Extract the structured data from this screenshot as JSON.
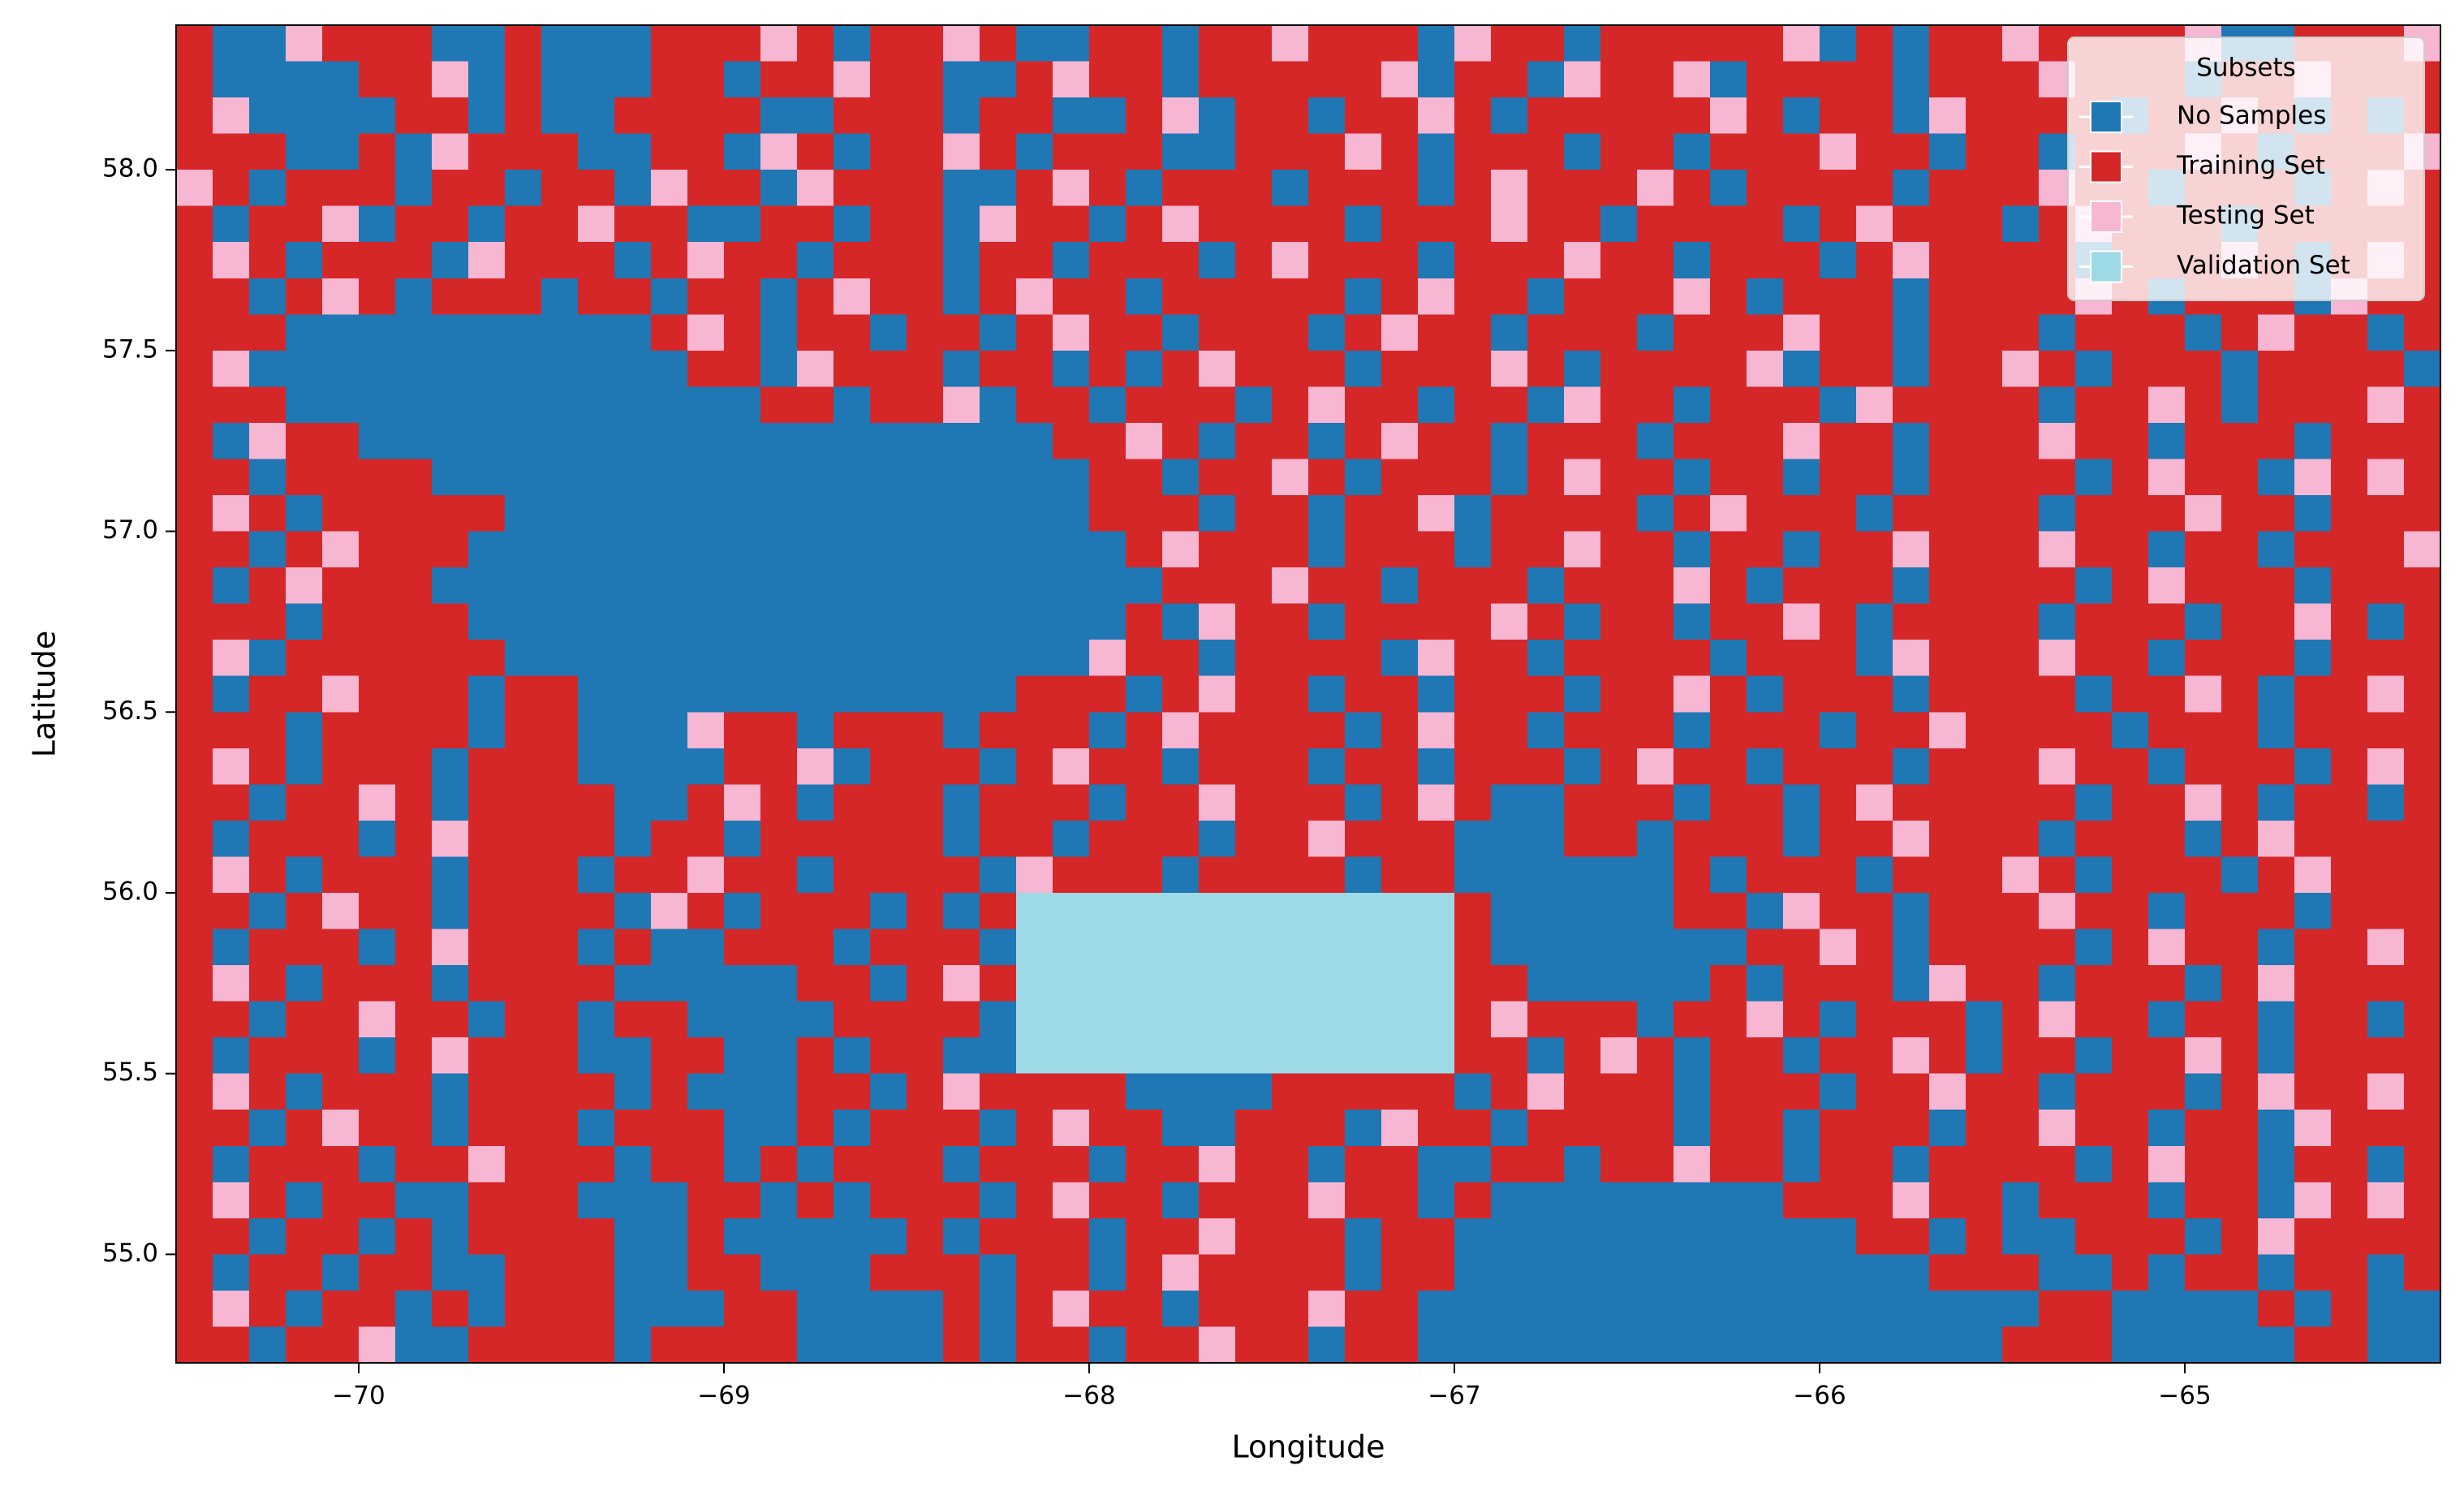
{
  "chart_data": {
    "type": "raster",
    "xlabel": "Longitude",
    "ylabel": "Latitude",
    "legend_title": "Subsets",
    "legend": "upper right",
    "xlim": [
      -70.5,
      -64.3
    ],
    "ylim": [
      54.7,
      58.4
    ],
    "xticks": [
      {
        "value": -70,
        "label": "−70"
      },
      {
        "value": -69,
        "label": "−69"
      },
      {
        "value": -68,
        "label": "−68"
      },
      {
        "value": -67,
        "label": "−67"
      },
      {
        "value": -66,
        "label": "−66"
      },
      {
        "value": -65,
        "label": "−65"
      }
    ],
    "yticks": [
      {
        "value": 55,
        "label": "55.0"
      },
      55.5,
      {
        "value": 56,
        "label": "56.0"
      },
      56.5,
      {
        "value": 57,
        "label": "57.0"
      },
      57.5,
      {
        "value": 58,
        "label": "58.0"
      }
    ],
    "series": [
      {
        "name": "No Samples",
        "color": "#1f77b4"
      },
      {
        "name": "Training Set",
        "color": "#d62728"
      },
      {
        "name": "Testing Set",
        "color": "#f7b6d2"
      },
      {
        "name": "Validation Set",
        "color": "#9edae5"
      }
    ],
    "grid_rows": [
      "10021110010001112101121001101121110211011111201011211112001112",
      "10000112010001101121100121101111120110211201111011121110112111",
      "12000011010011110011101100120110112101111121011021111011210101",
      "11100102111001102101121011100111210111011011121101101112101112",
      "21011101101102110211100121011101110121112101111011121101110121",
      "10112011011211001101102110121111011121101111012111012111011111",
      "12101110211101211011101101110121110111211011101211110111210121",
      "11012101110110110121101211011111012110111210111011112101110211",
      "11100000000001210110110121101110121101110111211011101110121101",
      "12000000000000110211101101012111011121011112011011210111011110",
      "11100000000000001101120110111012110110211011102111101121011121",
      "10211000000000000000000011210110121101110111211011121101110111",
      "11011110000000000000000001101121011101211011011011110121102121",
      "12101111100000000000000001110110112011110121110111101112110111",
      "11012111000000000000000000121110111011211011011211121101101112",
      "10121110000000000000000000011121101110111210111011110121110111",
      "11101111000000000000000000102110111121011011210111101110112101",
      "12011111100000000000000002110111102110111101110211121101110111",
      "10112111011000000000000111012110110111011210111011110112101121",
      "11101111011000211011101110121111012110111011101121111011101111",
      "12101110111000011201110121101110110111012110111011121101110121",
      "11011210111100121011101110112111012100111011012111110112101101",
      "10111012111101101111101101110112111000110111011211101110121111",
      "12101110111011211011110211101111011000000101110111210111012111",
      "11012110111102101110101333333333333100000110211011121101110111",
      "10111012111010011101110333333333333100000001121011110121101121",
      "12101110111100000110121333333333333110000010111021101110121111",
      "11011211011011000011110333333333333121110112101110121101101101",
      "10111012111001100101100333333333333110121011011210110112101111",
      "12101110111101000110121111000011111012111011101121101110121121",
      "11012110111011100101110121100111021101111011011101121101102111",
      "10111011211101101011101110112110110011011211011011110121101101",
      "12101100111000110101110121101112110100000000111211011101102121",
      "11011010111100100000101110112111011000000000001101001110121111",
      "10110110011100110001110110121111011000000000000011100101101101",
      "12101101011100011000010121101112110000000000000000011000010100",
      "11011200111101111000010110112110110000000000000000111000001100"
    ]
  }
}
